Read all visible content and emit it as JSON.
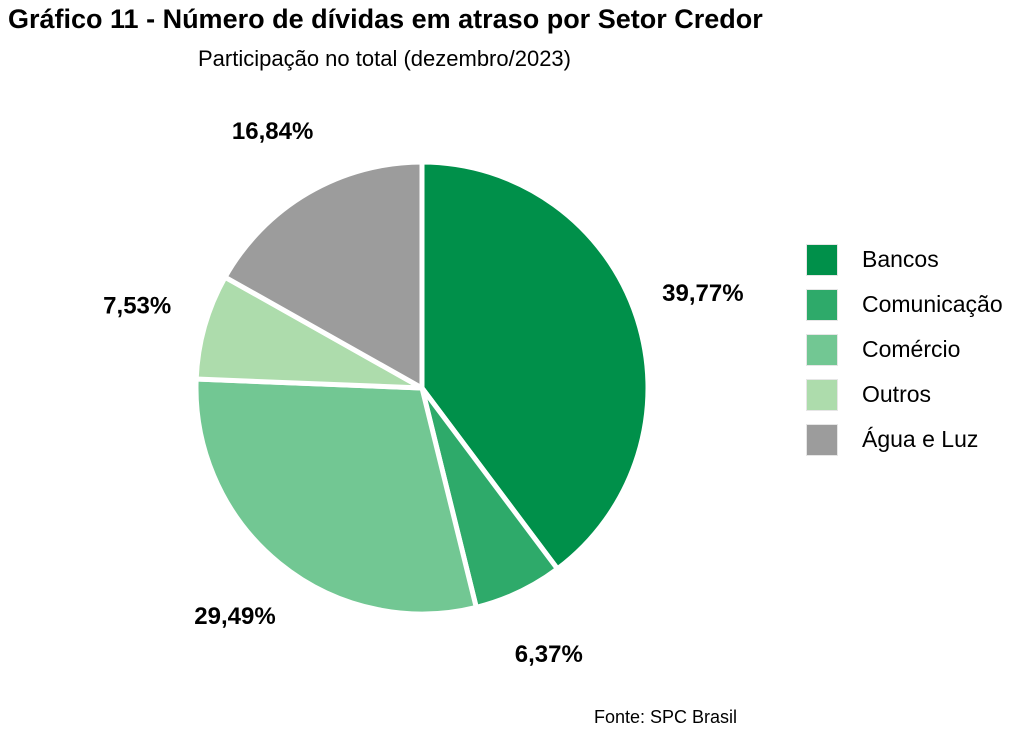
{
  "header": {
    "title": "Gráfico 11 - Número de dívidas em atraso por Setor Credor",
    "subtitle": "Participação no total (dezembro/2023)"
  },
  "footer": {
    "source": "Fonte: SPC Brasil"
  },
  "chart_data": {
    "type": "pie",
    "title": "Gráfico 11 - Número de dívidas em atraso por Setor Credor",
    "subtitle": "Participação no total (dezembro/2023)",
    "legend_position": "right",
    "slices": [
      {
        "name": "Bancos",
        "value": 39.77,
        "label": "39,77%",
        "color": "#00904A"
      },
      {
        "name": "Comunicação",
        "value": 6.37,
        "label": "6,37%",
        "color": "#2EAA6A"
      },
      {
        "name": "Comércio",
        "value": 29.49,
        "label": "29,49%",
        "color": "#72C793"
      },
      {
        "name": "Outros",
        "value": 7.53,
        "label": "7,53%",
        "color": "#ADDCAC"
      },
      {
        "name": "Água e Luz",
        "value": 16.84,
        "label": "16,84%",
        "color": "#9C9C9C"
      }
    ]
  }
}
